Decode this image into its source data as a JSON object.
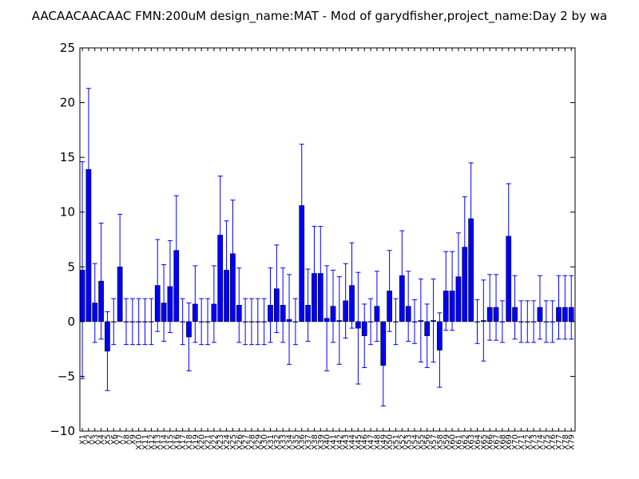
{
  "chart_data": {
    "type": "bar",
    "title": "AACAACAACAAC  FMN:200uM  design_name:MAT - Mod of garydfisher,project_name:Day 2 by wa",
    "xlabel": "",
    "ylabel": "",
    "ylim": [
      -10,
      25
    ],
    "yticks": [
      -10,
      -5,
      0,
      5,
      10,
      15,
      20,
      25
    ],
    "grid": false,
    "legend": "none",
    "bar_color": "#0000ff",
    "error_color": "#0000ff",
    "categories": [
      "X1",
      "X2",
      "X3",
      "X4",
      "X5",
      "X6",
      "X7",
      "X8",
      "X9",
      "X10",
      "X11",
      "X12",
      "X13",
      "X14",
      "X15",
      "X16",
      "X17",
      "X18",
      "X19",
      "X20",
      "X21",
      "X22",
      "X23",
      "X24",
      "X25",
      "X26",
      "X27",
      "X28",
      "X29",
      "X30",
      "X31",
      "X32",
      "X33",
      "X34",
      "X35",
      "X36",
      "X37",
      "X38",
      "X39",
      "X40",
      "X41",
      "X42",
      "X43",
      "X44",
      "X45",
      "X46",
      "X47",
      "X48",
      "X49",
      "X50",
      "X51",
      "X52",
      "X53",
      "X54",
      "X55",
      "X56",
      "X57",
      "X58",
      "X59",
      "X60",
      "X61",
      "X62",
      "X63",
      "X64",
      "X65",
      "X66",
      "X67",
      "X68",
      "X69",
      "X70",
      "X71",
      "X72",
      "X73",
      "X74",
      "X75",
      "X76",
      "X77",
      "X78",
      "X79"
    ],
    "values": [
      4.7,
      13.9,
      1.7,
      3.7,
      -2.7,
      0,
      5.0,
      0,
      0,
      0,
      0,
      0,
      3.3,
      1.7,
      3.2,
      6.5,
      0,
      -1.4,
      1.6,
      0,
      0,
      1.6,
      7.9,
      4.7,
      6.2,
      1.5,
      0,
      0,
      0,
      0,
      1.5,
      3.0,
      1.5,
      0.2,
      0,
      10.6,
      1.5,
      4.4,
      4.4,
      0.3,
      1.4,
      0.1,
      1.9,
      3.3,
      -0.6,
      -1.3,
      0,
      1.4,
      -4.0,
      2.8,
      0,
      4.2,
      1.4,
      0,
      0.1,
      -1.3,
      0.1,
      -2.6,
      2.8,
      2.8,
      4.1,
      6.8,
      9.4,
      0,
      0.1,
      1.3,
      1.3,
      0,
      7.8,
      1.3,
      0,
      0,
      0,
      1.3,
      0,
      0,
      1.3,
      1.3,
      1.3
    ],
    "errors": [
      9.9,
      7.4,
      3.6,
      5.3,
      3.6,
      2.1,
      4.8,
      2.1,
      2.1,
      2.1,
      2.1,
      2.1,
      4.2,
      3.5,
      4.2,
      5.0,
      2.1,
      3.1,
      3.5,
      2.1,
      2.1,
      3.5,
      5.4,
      4.5,
      4.9,
      3.4,
      2.1,
      2.1,
      2.1,
      2.1,
      3.4,
      4.0,
      3.4,
      4.1,
      2.1,
      5.6,
      3.3,
      4.3,
      4.3,
      4.8,
      3.3,
      4.0,
      3.4,
      3.9,
      5.1,
      2.9,
      2.1,
      3.2,
      3.7,
      3.7,
      2.1,
      4.1,
      3.2,
      2.0,
      3.8,
      2.9,
      3.8,
      3.4,
      3.6,
      3.6,
      4.0,
      4.6,
      5.1,
      2.0,
      3.7,
      3.0,
      3.0,
      1.9,
      4.8,
      2.9,
      1.9,
      1.9,
      1.9,
      2.9,
      1.9,
      1.9,
      2.9,
      2.9,
      2.9
    ]
  }
}
